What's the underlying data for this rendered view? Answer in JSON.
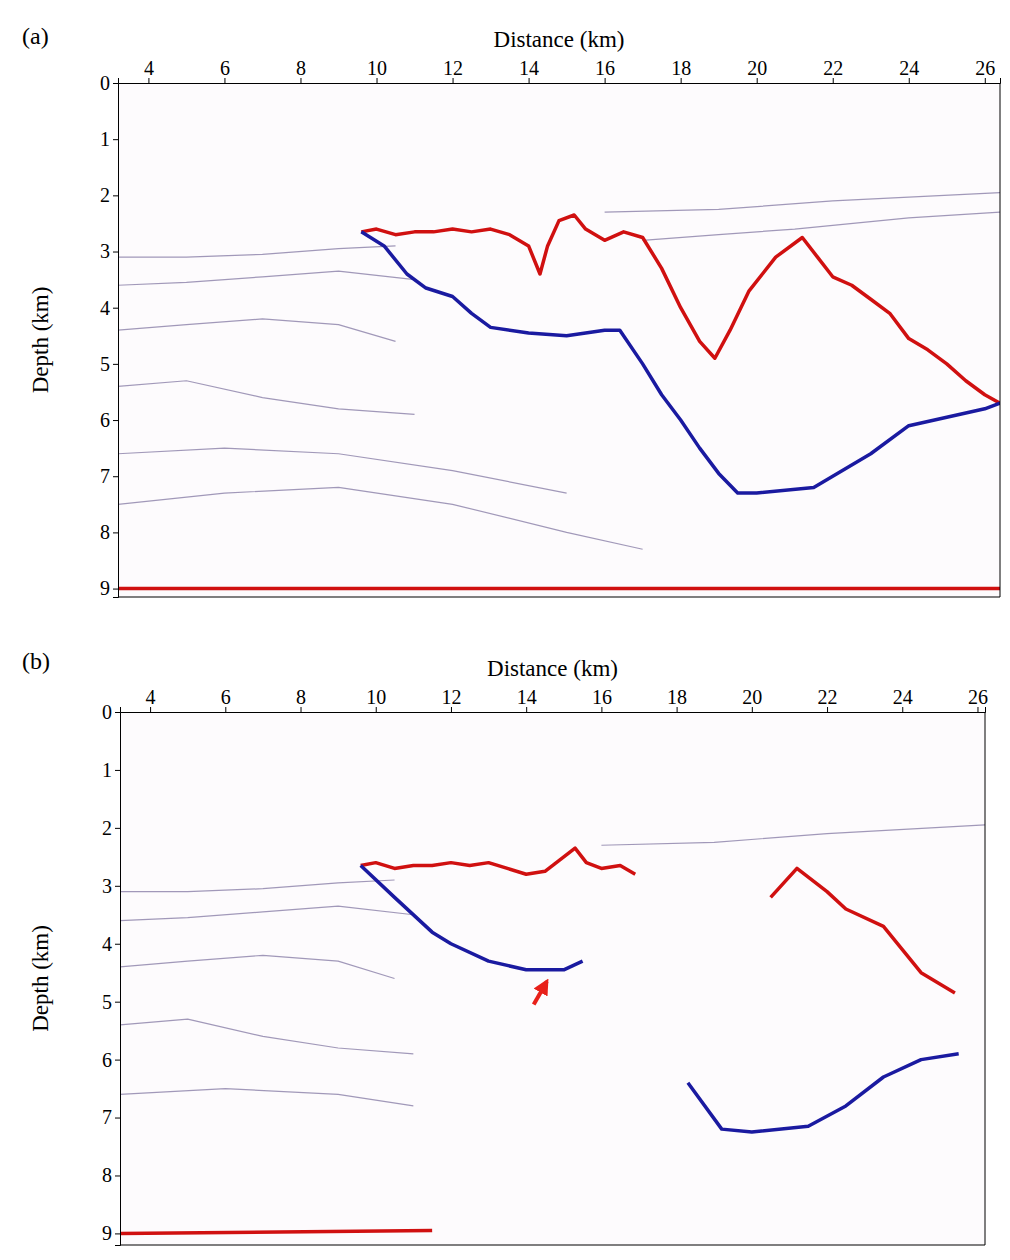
{
  "chart_data": [
    {
      "type": "line",
      "title": "(a)",
      "x_label": "Distance (km)",
      "y_label": "Depth (km)",
      "xlim": [
        3.2,
        26.4
      ],
      "ylim": [
        0,
        9.15
      ],
      "xticks": [
        4,
        6,
        8,
        10,
        12,
        14,
        16,
        18,
        20,
        22,
        24,
        26
      ],
      "yticks": [
        0,
        1,
        2,
        3,
        4,
        5,
        6,
        7,
        8,
        9
      ],
      "series": [
        {
          "color": "#8a7fa8",
          "line_style": "solid",
          "x": [
            3.2,
            5,
            7,
            9,
            10.5
          ],
          "values": [
            3.1,
            3.1,
            3.05,
            2.95,
            2.9
          ]
        },
        {
          "color": "#8a7fa8",
          "line_style": "solid",
          "x": [
            3.2,
            5,
            7,
            9,
            11
          ],
          "values": [
            3.6,
            3.55,
            3.45,
            3.35,
            3.5
          ]
        },
        {
          "color": "#8a7fa8",
          "line_style": "solid",
          "x": [
            3.2,
            5,
            7,
            9,
            10.5
          ],
          "values": [
            4.4,
            4.3,
            4.2,
            4.3,
            4.6
          ]
        },
        {
          "color": "#8a7fa8",
          "line_style": "solid",
          "x": [
            3.2,
            5,
            7,
            9,
            11
          ],
          "values": [
            5.4,
            5.3,
            5.6,
            5.8,
            5.9
          ]
        },
        {
          "color": "#8a7fa8",
          "line_style": "solid",
          "x": [
            3.2,
            6,
            9,
            12,
            15
          ],
          "values": [
            6.6,
            6.5,
            6.6,
            6.9,
            7.3
          ]
        },
        {
          "color": "#8a7fa8",
          "line_style": "solid",
          "x": [
            3.2,
            6,
            9,
            12,
            15,
            17
          ],
          "values": [
            7.5,
            7.3,
            7.2,
            7.5,
            8.0,
            8.3
          ]
        },
        {
          "color": "#8a7fa8",
          "line_style": "solid",
          "x": [
            16,
            19,
            22,
            26.4
          ],
          "values": [
            2.3,
            2.25,
            2.1,
            1.95
          ]
        },
        {
          "color": "#8a7fa8",
          "line_style": "solid",
          "x": [
            17,
            19,
            21,
            24,
            26.4
          ],
          "values": [
            2.8,
            2.7,
            2.6,
            2.4,
            2.3
          ]
        },
        {
          "color": "#d01010",
          "line_style": "bold",
          "x": [
            9.6,
            10.0,
            10.5,
            11,
            11.5,
            12,
            12.5,
            13,
            13.5,
            14,
            14.3,
            14.5,
            14.8,
            15.2,
            15.5,
            16,
            16.5,
            17,
            17.5,
            18,
            18.5,
            18.9,
            19.3,
            19.8,
            20.5,
            21.2,
            21.6,
            22,
            22.5,
            23,
            23.5,
            24,
            24.5,
            25,
            25.5,
            26,
            26.4
          ],
          "values": [
            2.65,
            2.6,
            2.7,
            2.65,
            2.65,
            2.6,
            2.65,
            2.6,
            2.7,
            2.9,
            3.4,
            2.9,
            2.45,
            2.35,
            2.6,
            2.8,
            2.65,
            2.75,
            3.3,
            4.0,
            4.6,
            4.9,
            4.4,
            3.7,
            3.1,
            2.75,
            3.1,
            3.45,
            3.6,
            3.85,
            4.1,
            4.55,
            4.75,
            5.0,
            5.3,
            5.55,
            5.7
          ]
        },
        {
          "color": "#1a1aa0",
          "line_style": "bold",
          "x": [
            9.6,
            10.2,
            10.8,
            11.3,
            12,
            12.5,
            13,
            14,
            15,
            16,
            16.4,
            17,
            17.5,
            18,
            18.5,
            19,
            19.5,
            20,
            21.5,
            22,
            23,
            24,
            25,
            26,
            26.4
          ],
          "values": [
            2.65,
            2.9,
            3.4,
            3.65,
            3.8,
            4.1,
            4.35,
            4.45,
            4.5,
            4.4,
            4.4,
            5.0,
            5.55,
            6.0,
            6.5,
            6.95,
            7.3,
            7.3,
            7.2,
            7.0,
            6.6,
            6.1,
            5.95,
            5.8,
            5.7
          ]
        },
        {
          "color": "#d01010",
          "line_style": "bold",
          "x": [
            3.2,
            26.4
          ],
          "values": [
            9.0,
            9.0
          ]
        }
      ]
    },
    {
      "type": "line",
      "title": "(b)",
      "x_label": "Distance (km)",
      "y_label": "Depth (km)",
      "xlim": [
        3.2,
        26.2
      ],
      "ylim": [
        0,
        9.2
      ],
      "xticks": [
        4,
        6,
        8,
        10,
        12,
        14,
        16,
        18,
        20,
        22,
        24,
        26
      ],
      "yticks": [
        0,
        1,
        2,
        3,
        4,
        5,
        6,
        7,
        8,
        9
      ],
      "series": [
        {
          "color": "#8a7fa8",
          "line_style": "solid",
          "x": [
            3.2,
            5,
            7,
            9,
            10.5
          ],
          "values": [
            3.1,
            3.1,
            3.05,
            2.95,
            2.9
          ]
        },
        {
          "color": "#8a7fa8",
          "line_style": "solid",
          "x": [
            3.2,
            5,
            7,
            9,
            11
          ],
          "values": [
            3.6,
            3.55,
            3.45,
            3.35,
            3.5
          ]
        },
        {
          "color": "#8a7fa8",
          "line_style": "solid",
          "x": [
            3.2,
            5,
            7,
            9,
            10.5
          ],
          "values": [
            4.4,
            4.3,
            4.2,
            4.3,
            4.6
          ]
        },
        {
          "color": "#8a7fa8",
          "line_style": "solid",
          "x": [
            3.2,
            5,
            7,
            9,
            11
          ],
          "values": [
            5.4,
            5.3,
            5.6,
            5.8,
            5.9
          ]
        },
        {
          "color": "#8a7fa8",
          "line_style": "solid",
          "x": [
            3.2,
            6,
            9,
            11
          ],
          "values": [
            6.6,
            6.5,
            6.6,
            6.8
          ]
        },
        {
          "color": "#8a7fa8",
          "line_style": "solid",
          "x": [
            16,
            19,
            22,
            26.2
          ],
          "values": [
            2.3,
            2.25,
            2.1,
            1.95
          ]
        },
        {
          "color": "#d01010",
          "line_style": "bold",
          "x": [
            9.6,
            10.0,
            10.5,
            11,
            11.5,
            12,
            12.5,
            13,
            13.5,
            14,
            14.5,
            15.0,
            15.3,
            15.6,
            16,
            16.5,
            16.9,
            19.7,
            20.5,
            21.2,
            22,
            22.5,
            23.5,
            24.5,
            25.4
          ],
          "values": [
            2.65,
            2.6,
            2.7,
            2.65,
            2.65,
            2.6,
            2.65,
            2.6,
            2.7,
            2.8,
            2.75,
            2.5,
            2.35,
            2.6,
            2.7,
            2.65,
            2.8,
            null,
            3.2,
            2.7,
            3.1,
            3.4,
            3.7,
            4.5,
            4.85
          ]
        },
        {
          "color": "#1a1aa0",
          "line_style": "bold",
          "x": [
            9.6,
            10.5,
            11.5,
            12,
            13,
            14,
            15,
            15.5,
            17.6,
            18.3,
            19.2,
            20,
            21.5,
            22.5,
            23.5,
            24.5,
            25.5
          ],
          "values": [
            2.65,
            3.2,
            3.8,
            4.0,
            4.3,
            4.45,
            4.45,
            4.3,
            null,
            6.4,
            7.2,
            7.25,
            7.15,
            6.8,
            6.3,
            6.0,
            5.9
          ]
        },
        {
          "color": "#d01010",
          "line_style": "bold",
          "x": [
            3.2,
            11.5
          ],
          "values": [
            9.0,
            8.95
          ]
        }
      ],
      "annotations": [
        {
          "x": 14.55,
          "y": 4.65,
          "x_from": 14.2,
          "y_from": 5.05,
          "color": "#e8201a"
        }
      ]
    }
  ]
}
